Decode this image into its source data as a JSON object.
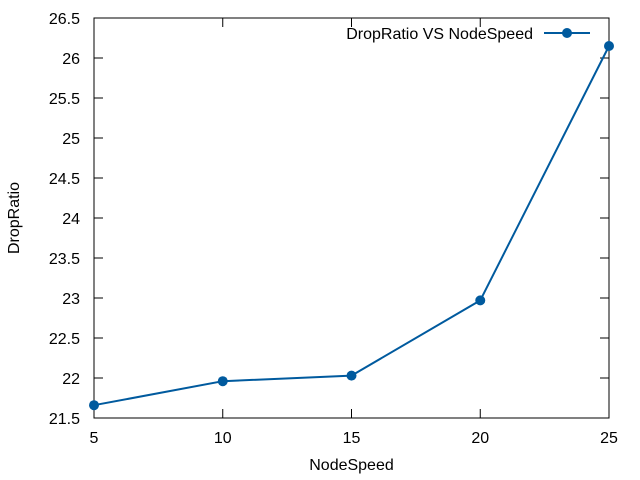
{
  "chart_data": {
    "type": "line",
    "xlabel": "NodeSpeed",
    "ylabel": "DropRatio",
    "xlim": [
      5,
      25
    ],
    "ylim": [
      21.5,
      26.5
    ],
    "xticks": [
      5,
      10,
      15,
      20,
      25
    ],
    "yticks": [
      21.5,
      22,
      22.5,
      23,
      23.5,
      24,
      24.5,
      25,
      25.5,
      26,
      26.5
    ],
    "xtick_labels": [
      "5",
      "10",
      "15",
      "20",
      "25"
    ],
    "ytick_labels": [
      "21.5",
      "22",
      "22.5",
      "23",
      "23.5",
      "24",
      "24.5",
      "25",
      "25.5",
      "26",
      "26.5"
    ],
    "grid": false,
    "legend_position": "top-right",
    "series": [
      {
        "name": "DropRatio VS NodeSpeed",
        "color": "#005a9e",
        "marker": "circle",
        "x": [
          5,
          10,
          15,
          20,
          25
        ],
        "values": [
          21.66,
          21.96,
          22.03,
          22.97,
          26.15
        ]
      }
    ]
  }
}
